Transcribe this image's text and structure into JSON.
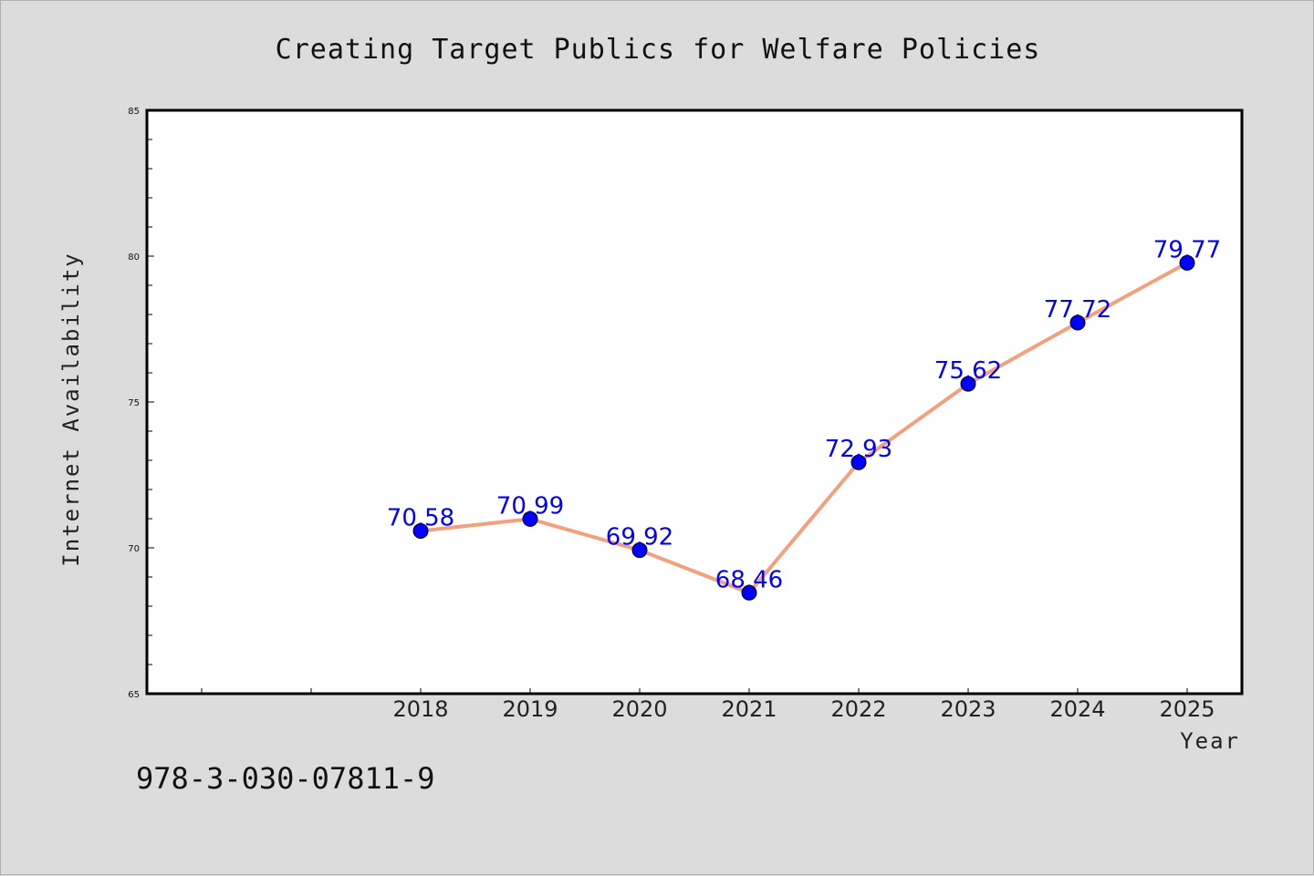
{
  "chart_data": {
    "type": "line",
    "title": "Creating Target Publics for Welfare Policies",
    "xlabel": "Year",
    "ylabel": "Internet Availability",
    "categories": [
      "2018",
      "2019",
      "2020",
      "2021",
      "2022",
      "2023",
      "2024",
      "2025"
    ],
    "series": [
      {
        "values": [
          70.58,
          70.99,
          69.92,
          68.46,
          72.93,
          75.62,
          77.72,
          79.77
        ]
      }
    ],
    "data_labels": [
      "70.58",
      "70.99",
      "69.92",
      "68.46",
      "72.93",
      "75.62",
      "77.72",
      "79.77"
    ],
    "ylim": [
      65,
      85
    ],
    "yticks": [
      "65",
      "70",
      "75",
      "80",
      "85"
    ],
    "grid": false,
    "legend": "none",
    "colors": {
      "line": "#f4a07c",
      "marker": "#0000ff",
      "labels": "#0000ff",
      "background": "#dcdcdc",
      "plot_area": "#ffffff"
    }
  },
  "footer": {
    "isbn": "978-3-030-07811-9"
  }
}
